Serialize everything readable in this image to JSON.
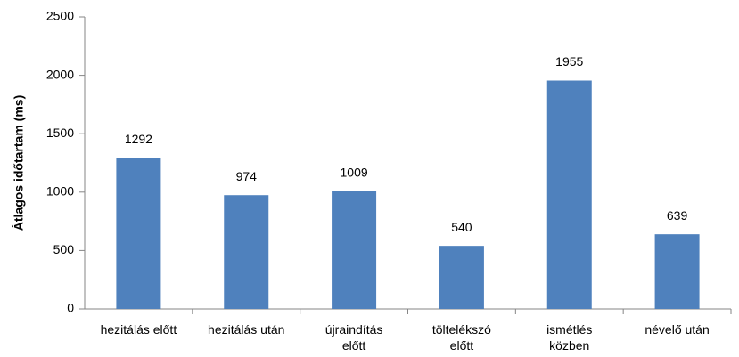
{
  "chart_data": {
    "type": "bar",
    "ylabel": "Átlagos időtartam (ms)",
    "categories": [
      "hezitálás előtt",
      "hezitálás után",
      "újraindítás előtt",
      "töltelékszó előtt",
      "ismétlés közben",
      "névelő után"
    ],
    "values": [
      1292,
      974,
      1009,
      540,
      1955,
      639
    ],
    "color": "#4f81bd",
    "ylim": [
      0,
      2500
    ],
    "yticks": [
      0,
      500,
      1000,
      1500,
      2000,
      2500
    ],
    "grid": false
  }
}
